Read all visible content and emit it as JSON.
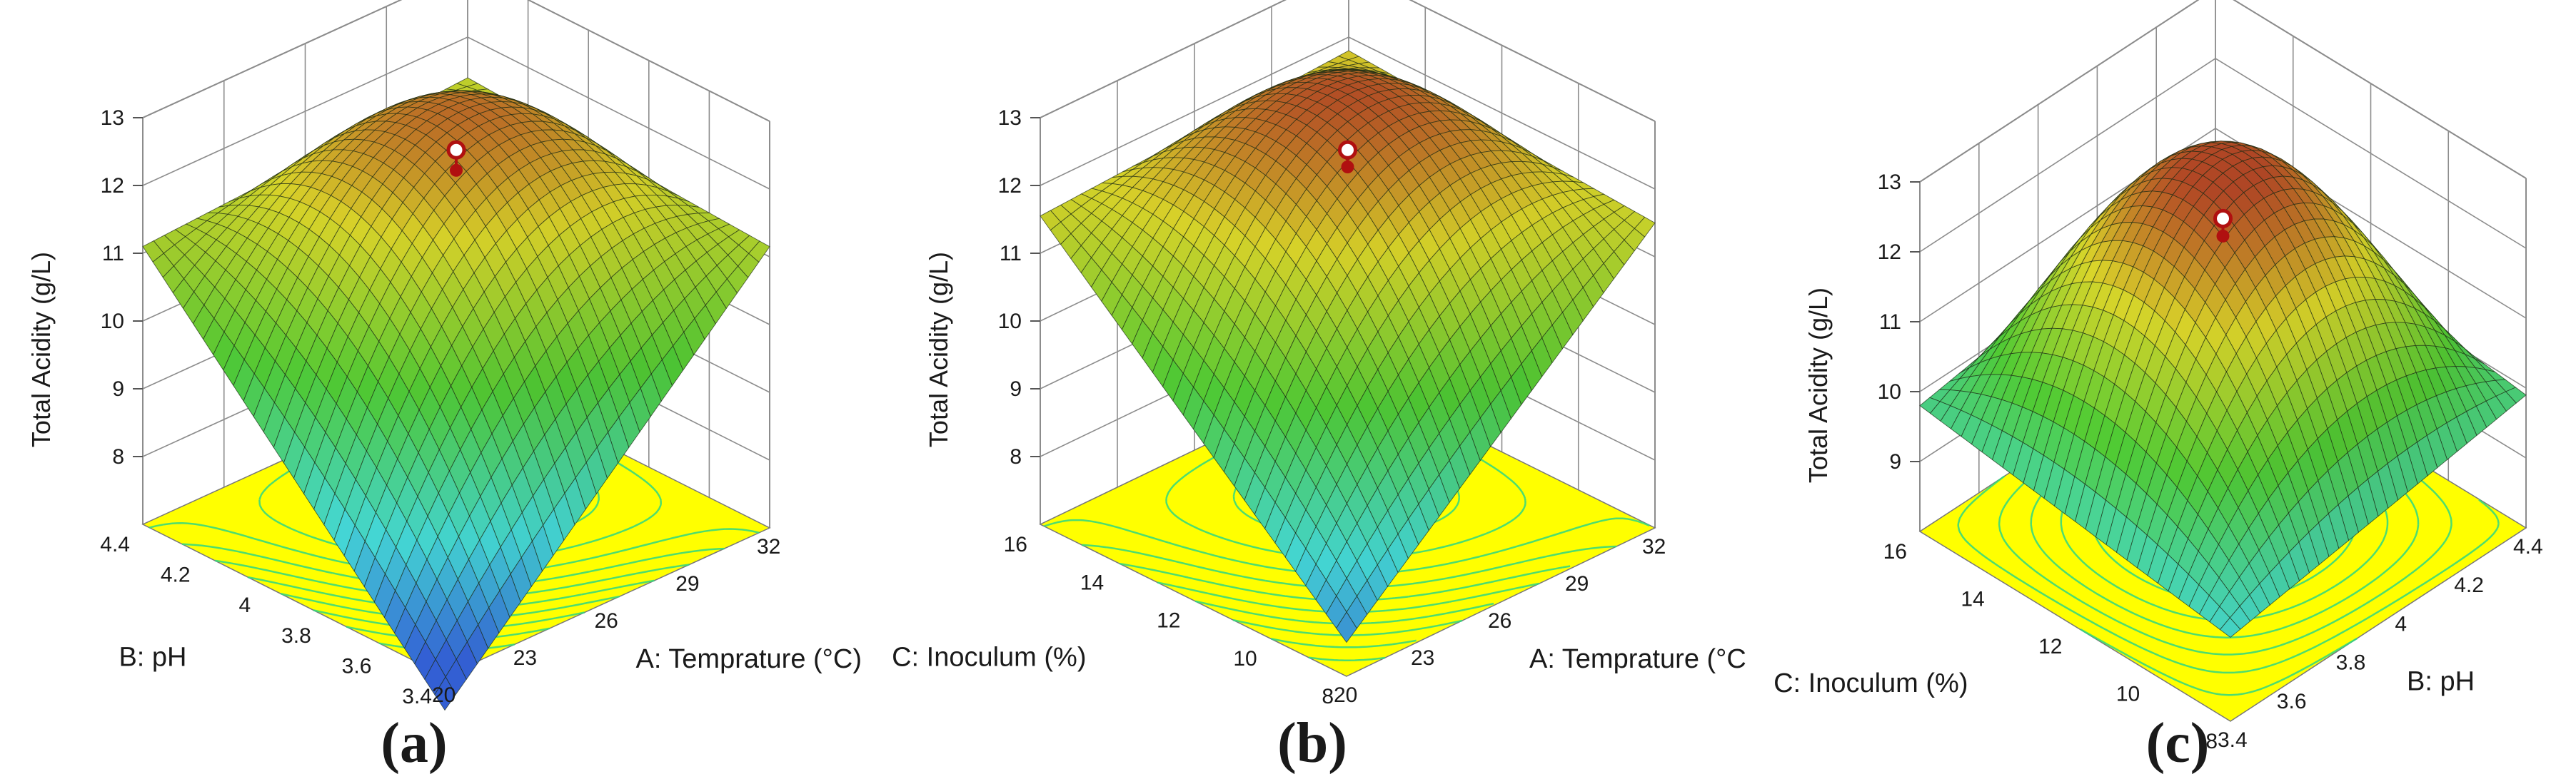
{
  "figure": {
    "panels": [
      {
        "label_open": "(",
        "letter": "a",
        "label_close": ")"
      },
      {
        "label_open": "(",
        "letter": "b",
        "label_close": ")"
      },
      {
        "label_open": "(",
        "letter": "c",
        "label_close": ")"
      }
    ]
  },
  "colors": {
    "floor": "#ffff00",
    "contour": "#2ed882",
    "surface_low": "#3a6cf0",
    "surface_cyan": "#4cf0ee",
    "surface_green": "#58e03a",
    "surface_yellow": "#f2ec2e",
    "surface_high": "#c8502a",
    "mesh": "#1b2a14",
    "design_point_fill": "#ffffff",
    "design_point_ring": "#b01010",
    "box_line": "#8c8c8c"
  },
  "chart_data": [
    {
      "type": "surface3d",
      "panel": "a",
      "zlabel": "Total  Acidity (g/L)",
      "xlabel": "A: Temprature (°C)",
      "ylabel": "B: pH",
      "zticks": [
        "8",
        "9",
        "10",
        "11",
        "12",
        "13"
      ],
      "zlim": [
        7,
        13
      ],
      "xticks": [
        "20",
        "23",
        "26",
        "29",
        "32"
      ],
      "xrange": [
        20,
        32
      ],
      "yticks": [
        "3.4",
        "3.6",
        "3.8",
        "4",
        "4.2",
        "4.4"
      ],
      "yrange": [
        3.4,
        4.4
      ],
      "corners": {
        "front": 6.5,
        "left": 11.1,
        "right": 11.15,
        "back": 11.4
      },
      "center": 12.4,
      "design_point": 12.55,
      "below_point": 12.25
    },
    {
      "type": "surface3d",
      "panel": "b",
      "zlabel": "Total  Acidity (g/L)",
      "xlabel": "A: Temprature (°C",
      "ylabel": "C: Inoculum  (%)",
      "zticks": [
        "8",
        "9",
        "10",
        "11",
        "12",
        "13"
      ],
      "zlim": [
        7,
        13
      ],
      "xticks": [
        "20",
        "23",
        "26",
        "29",
        "32"
      ],
      "xrange": [
        20,
        32
      ],
      "yticks": [
        "8",
        "10",
        "12",
        "14",
        "16"
      ],
      "yrange": [
        8,
        16
      ],
      "corners": {
        "front": 7.5,
        "left": 11.55,
        "right": 11.5,
        "back": 11.8
      },
      "center": 12.7,
      "design_point": 12.55,
      "below_point": 12.3
    },
    {
      "type": "surface3d",
      "panel": "c",
      "zlabel": "Total  Acidity (g/L)",
      "xlabel": "B: pH",
      "ylabel": "C: Inoculum  (%)",
      "zticks": [
        "9",
        "10",
        "11",
        "12",
        "13"
      ],
      "zlim": [
        8,
        13
      ],
      "xticks": [
        "3.4",
        "3.6",
        "3.8",
        "4",
        "4.2",
        "4.4"
      ],
      "xrange": [
        3.4,
        4.4
      ],
      "yticks": [
        "8",
        "10",
        "12",
        "14",
        "16"
      ],
      "yrange": [
        8,
        16
      ],
      "corners": {
        "front": 9.2,
        "left": 9.8,
        "right": 9.9,
        "back": 10.5
      },
      "center": 13.1,
      "design_point": 12.45,
      "below_point": 12.2
    }
  ]
}
